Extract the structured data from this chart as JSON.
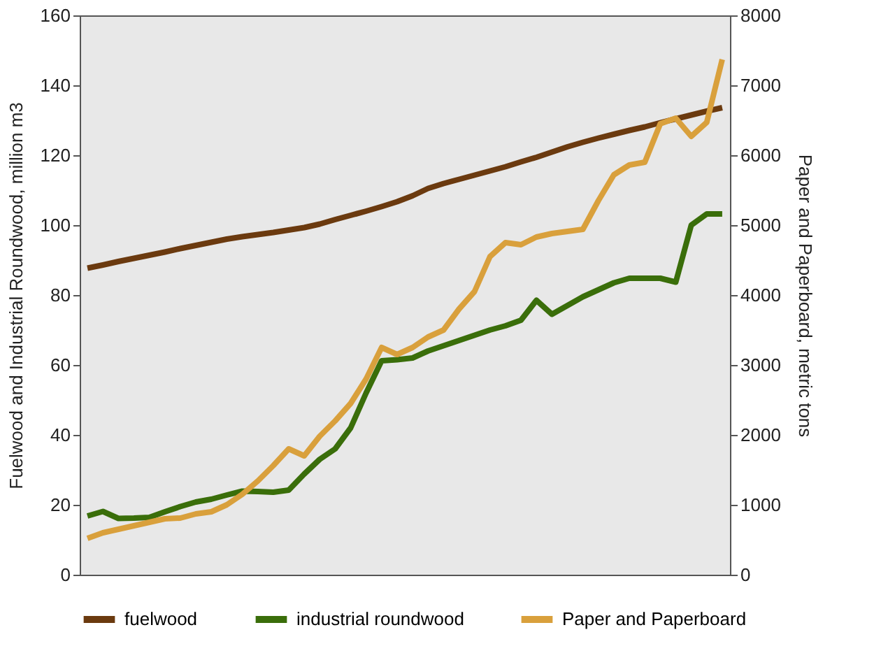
{
  "chart_data": {
    "type": "line",
    "categories": [
      null,
      null,
      null,
      null,
      null,
      null,
      null,
      null,
      null,
      null,
      null,
      null,
      null,
      null,
      null,
      null,
      null,
      null,
      null,
      null,
      null,
      null,
      null,
      null,
      null,
      null,
      null,
      null,
      null,
      null,
      null,
      null,
      null,
      null,
      null,
      null,
      null,
      null,
      null,
      null,
      null,
      null
    ],
    "ylabel": "Fuelwood and Industrial Roundwood, million m3",
    "y2label": "Paper and Paperboard, metric tons",
    "ylim": [
      0,
      160
    ],
    "yticks": [
      0,
      20,
      40,
      60,
      80,
      100,
      120,
      140,
      160
    ],
    "y2lim": [
      0,
      8000
    ],
    "y2ticks": [
      0,
      1000,
      2000,
      3000,
      4000,
      5000,
      6000,
      7000,
      8000
    ],
    "grid": false,
    "legend": "bottom",
    "tick_labels": "y",
    "marker": "none",
    "line_style": "solid",
    "series": [
      {
        "name": "fuelwood",
        "color": "#6b3a0f",
        "values": [
          87.7,
          88.6,
          89.6,
          90.5,
          91.4,
          92.3,
          93.3,
          94.2,
          95.1,
          96.0,
          96.7,
          97.3,
          97.9,
          98.6,
          99.3,
          100.3,
          101.6,
          102.8,
          104,
          105.3,
          106.7,
          108.4,
          110.5,
          111.9,
          113.1,
          114.3,
          115.5,
          116.7,
          118.1,
          119.4,
          120.9,
          122.4,
          123.7,
          124.9,
          126,
          127.1,
          128.1,
          129.3,
          130.4,
          131.5,
          132.6,
          133.6
        ]
      },
      {
        "name": "industrial roundwood",
        "color": "#3a6e0a",
        "values": [
          16.8,
          18.1,
          16.1,
          16.2,
          16.4,
          18,
          19.5,
          20.8,
          21.6,
          22.8,
          23.9,
          23.8,
          23.6,
          24.2,
          28.8,
          33,
          36,
          42,
          52,
          61.2,
          61.5,
          62,
          64,
          65.5,
          67,
          68.5,
          70,
          71.2,
          72.8,
          78.5,
          74.5,
          77,
          79.5,
          81.5,
          83.5,
          84.8,
          84.8,
          84.8,
          83.7,
          100,
          103.2,
          103.2
        ]
      },
      {
        "name": "Paper and Paperboard",
        "color": "#d9a03c",
        "axis": "y2",
        "values": [
          520,
          600,
          650,
          700,
          750,
          800,
          810,
          870,
          900,
          1000,
          1150,
          1340,
          1560,
          1800,
          1700,
          1980,
          2200,
          2450,
          2800,
          3250,
          3150,
          3250,
          3400,
          3500,
          3800,
          4050,
          4550,
          4750,
          4720,
          4830,
          4880,
          4910,
          4940,
          5350,
          5720,
          5860,
          5900,
          6450,
          6530,
          6270,
          6470,
          7370
        ]
      }
    ]
  }
}
